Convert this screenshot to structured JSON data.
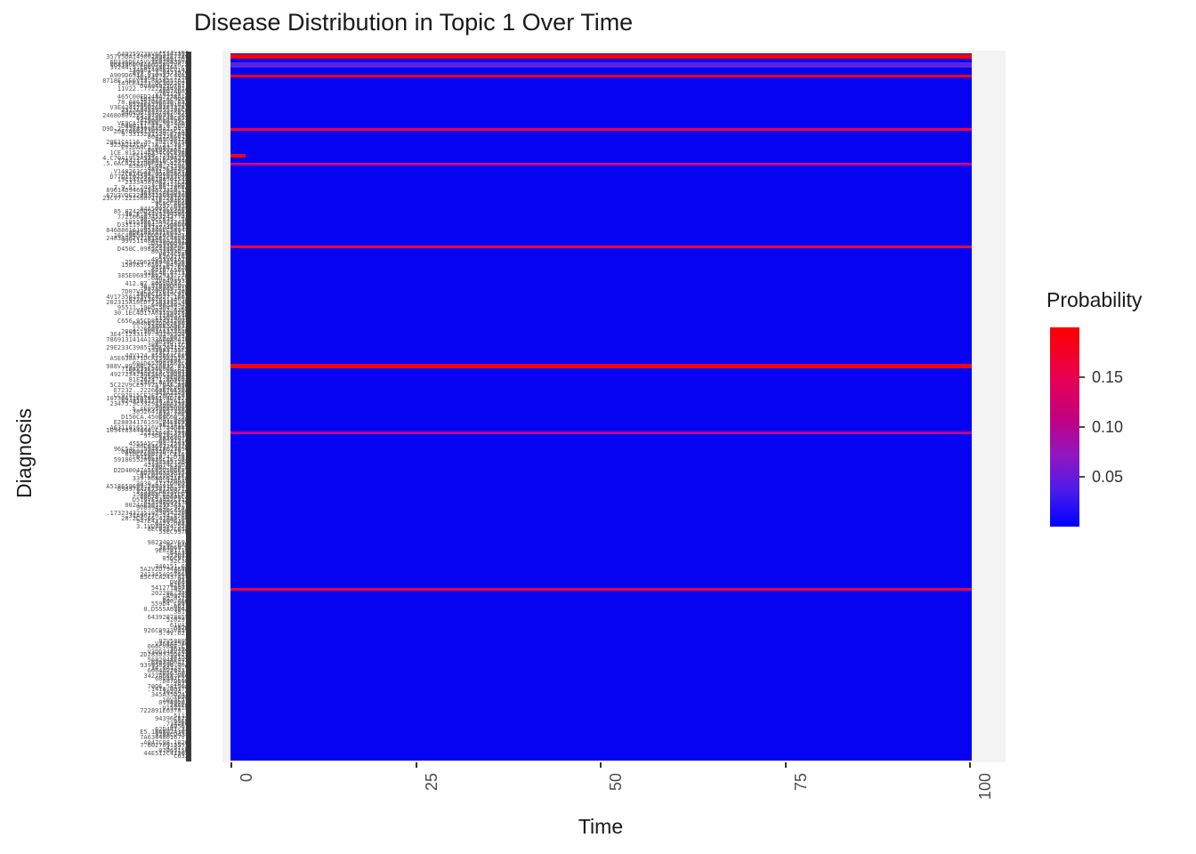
{
  "title": "Disease Distribution in Topic 1 Over Time",
  "x_axis": {
    "label": "Time",
    "ticks": [
      0,
      25,
      50,
      75,
      100
    ],
    "range": [
      0,
      100
    ]
  },
  "y_axis": {
    "label": "Diagnosis",
    "tick_note": "hundreds of overlapping diagnosis-code labels, illegible at this scale"
  },
  "legend": {
    "title": "Probability",
    "ticks": [
      0.15,
      0.1,
      0.05
    ],
    "limits": [
      0,
      0.2
    ],
    "colors": {
      "high": "#FF0000",
      "low": "#0000FF"
    }
  },
  "chart_data": {
    "type": "heatmap",
    "title": "Disease Distribution in Topic 1 Over Time",
    "xlabel": "Time",
    "ylabel": "Diagnosis",
    "x_range": [
      0,
      100
    ],
    "legend_label": "Probability",
    "baseline_probability": 0.001,
    "baseline_color": "#0503f2",
    "high_rows": [
      {
        "y_frac": 0.004,
        "probability": 0.17,
        "color": "#ff0000",
        "thickness": 5
      },
      {
        "y_frac": 0.016,
        "probability": 0.04,
        "color": "#5a24e0",
        "thickness": 6
      },
      {
        "y_frac": 0.032,
        "probability": 0.16,
        "color": "#fb0110",
        "thickness": 3
      },
      {
        "y_frac": 0.107,
        "probability": 0.13,
        "color": "#f6013b",
        "thickness": 3
      },
      {
        "y_frac": 0.145,
        "probability": 0.15,
        "color": "#ff0000",
        "thickness": 4,
        "x_end_frac": 0.02
      },
      {
        "y_frac": 0.156,
        "probability": 0.08,
        "color": "#c80289",
        "thickness": 3
      },
      {
        "y_frac": 0.273,
        "probability": 0.13,
        "color": "#f2013f",
        "thickness": 3
      },
      {
        "y_frac": 0.442,
        "probability": 0.17,
        "color": "#fe0007",
        "thickness": 5
      },
      {
        "y_frac": 0.536,
        "probability": 0.07,
        "color": "#be0295",
        "thickness": 3
      },
      {
        "y_frac": 0.758,
        "probability": 0.13,
        "color": "#f4013a",
        "thickness": 3
      }
    ]
  },
  "y_label_sim": {
    "count": 266,
    "seed": 7
  }
}
